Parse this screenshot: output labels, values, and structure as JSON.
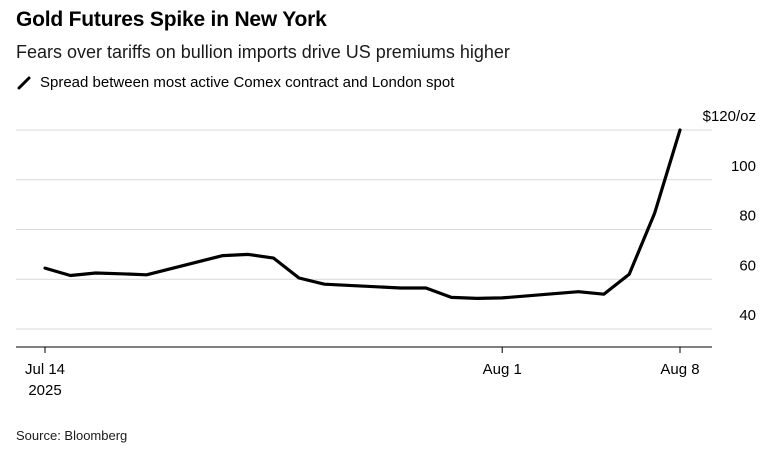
{
  "header": {
    "title": "Gold Futures Spike in New York",
    "subtitle": "Fears over tariffs on bullion imports drive US premiums higher"
  },
  "legend": {
    "label": "Spread between most active Comex contract and London spot"
  },
  "footer": {
    "source": "Source: Bloomberg"
  },
  "chart_data": {
    "type": "line",
    "title": "Gold Futures Spike in New York",
    "subtitle": "Fears over tariffs on bullion imports drive US premiums higher",
    "ylabel": "",
    "xlabel": "",
    "ylim": [
      38,
      120
    ],
    "yticks": [
      40,
      60,
      80,
      100,
      120
    ],
    "ytick_labels": [
      "40",
      "60",
      "80",
      "100",
      "$120/oz"
    ],
    "xlim": [
      "2025-07-14",
      "2025-08-08"
    ],
    "xticks": [
      {
        "date": "2025-07-14",
        "label": "Jul 14",
        "sublabel": "2025"
      },
      {
        "date": "2025-08-01",
        "label": "Aug 1",
        "sublabel": ""
      },
      {
        "date": "2025-08-08",
        "label": "Aug 8",
        "sublabel": ""
      }
    ],
    "grid": true,
    "line_color": "#000000",
    "series": [
      {
        "name": "Spread between most active Comex contract and London spot",
        "points": [
          {
            "x": "2025-07-14",
            "y": 64.5
          },
          {
            "x": "2025-07-15",
            "y": 61.5
          },
          {
            "x": "2025-07-16",
            "y": 62.5
          },
          {
            "x": "2025-07-17",
            "y": 62.2
          },
          {
            "x": "2025-07-18",
            "y": 61.8
          },
          {
            "x": "2025-07-21",
            "y": 69.5
          },
          {
            "x": "2025-07-22",
            "y": 70.0
          },
          {
            "x": "2025-07-23",
            "y": 68.5
          },
          {
            "x": "2025-07-24",
            "y": 60.5
          },
          {
            "x": "2025-07-25",
            "y": 58.0
          },
          {
            "x": "2025-07-28",
            "y": 56.5
          },
          {
            "x": "2025-07-29",
            "y": 56.5
          },
          {
            "x": "2025-07-30",
            "y": 52.7
          },
          {
            "x": "2025-07-31",
            "y": 52.3
          },
          {
            "x": "2025-08-01",
            "y": 52.5
          },
          {
            "x": "2025-08-04",
            "y": 55.0
          },
          {
            "x": "2025-08-05",
            "y": 54.0
          },
          {
            "x": "2025-08-06",
            "y": 62.0
          },
          {
            "x": "2025-08-07",
            "y": 86.5
          },
          {
            "x": "2025-08-08",
            "y": 120.0
          }
        ]
      }
    ]
  }
}
